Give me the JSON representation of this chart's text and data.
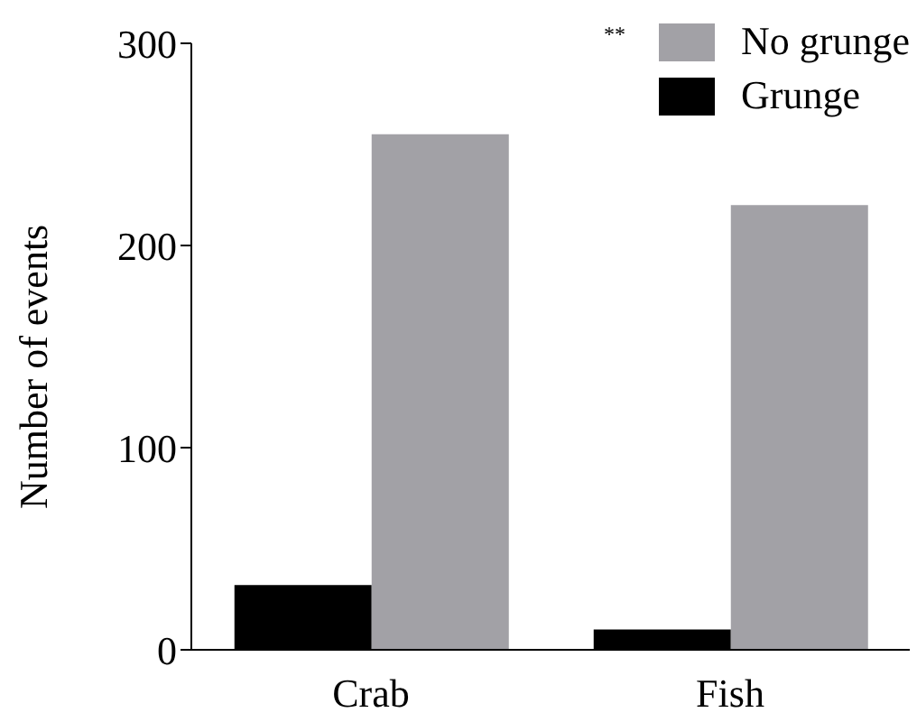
{
  "chart_data": {
    "type": "bar",
    "categories": [
      "Crab",
      "Fish"
    ],
    "ylabel": "Number of events",
    "ylim": [
      0,
      300
    ],
    "yticks": [
      0,
      100,
      200,
      300
    ],
    "grid": false,
    "legend": "top right",
    "annotations": [
      "**"
    ],
    "series": [
      {
        "name": "Grunge",
        "color": "#000000",
        "values": [
          32,
          10
        ]
      },
      {
        "name": "No grunge",
        "color": "#a2a1a6",
        "values": [
          255,
          220
        ]
      }
    ]
  }
}
